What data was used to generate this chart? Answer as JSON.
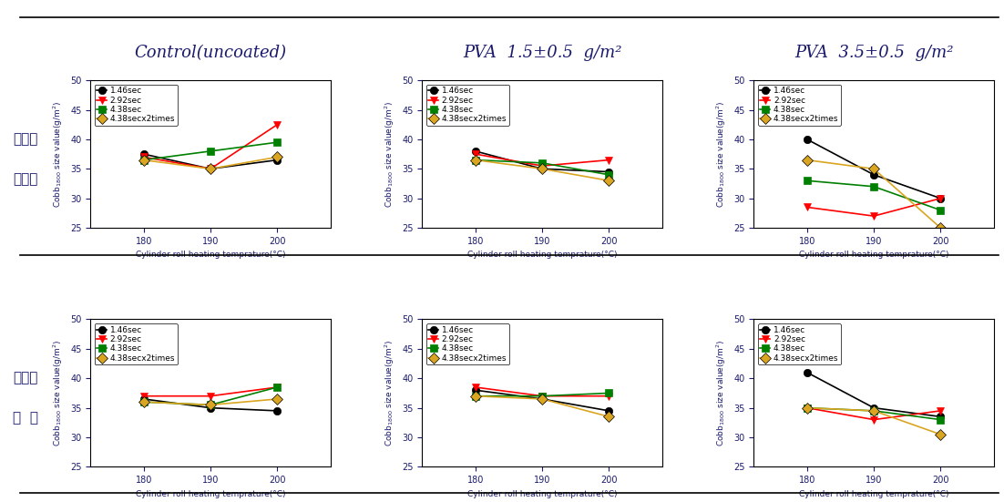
{
  "col_headers": [
    "Control(uncoated)",
    "PVA  1.5±0.5  g/m²",
    "PVA  3.5±0.5  g/m²"
  ],
  "row_headers_top": [
    "캘렌더",
    "미처리"
  ],
  "row_headers_bot": [
    "캘렌더",
    "처  리"
  ],
  "x_values": [
    180,
    190,
    200
  ],
  "xlabel": "Cylinder roll heating temprature(°C)",
  "ylabel": "Cobb$_{1800}$ size value(g/m$^2$)",
  "ylim": [
    25,
    50
  ],
  "yticks": [
    25,
    30,
    35,
    40,
    45,
    50
  ],
  "legend_labels": [
    "1.46sec",
    "2.92sec",
    "4.38sec",
    "4.38secx2times"
  ],
  "series_colors": [
    "black",
    "red",
    "green",
    "goldenrod"
  ],
  "series_markers": [
    "o",
    "v",
    "s",
    "D"
  ],
  "data": {
    "row0_col0": {
      "s1": [
        37.5,
        35.0,
        36.5
      ],
      "s2": [
        37.0,
        35.0,
        42.5
      ],
      "s3": [
        36.5,
        38.0,
        39.5
      ],
      "s4": [
        36.5,
        35.0,
        37.0
      ]
    },
    "row0_col1": {
      "s1": [
        38.0,
        35.0,
        34.5
      ],
      "s2": [
        37.5,
        35.5,
        36.5
      ],
      "s3": [
        36.5,
        36.0,
        34.0
      ],
      "s4": [
        36.5,
        35.0,
        33.0
      ]
    },
    "row0_col2": {
      "s1": [
        40.0,
        34.0,
        30.0
      ],
      "s2": [
        28.5,
        27.0,
        30.0
      ],
      "s3": [
        33.0,
        32.0,
        28.0
      ],
      "s4": [
        36.5,
        35.0,
        25.0
      ]
    },
    "row1_col0": {
      "s1": [
        36.5,
        35.0,
        34.5
      ],
      "s2": [
        37.0,
        37.0,
        38.5
      ],
      "s3": [
        36.0,
        35.5,
        38.5
      ],
      "s4": [
        36.0,
        35.5,
        36.5
      ]
    },
    "row1_col1": {
      "s1": [
        38.0,
        36.5,
        34.5
      ],
      "s2": [
        38.5,
        37.0,
        37.0
      ],
      "s3": [
        37.0,
        37.0,
        37.5
      ],
      "s4": [
        37.0,
        36.5,
        33.5
      ]
    },
    "row1_col2": {
      "s1": [
        41.0,
        35.0,
        33.5
      ],
      "s2": [
        35.0,
        33.0,
        34.5
      ],
      "s3": [
        35.0,
        34.5,
        33.0
      ],
      "s4": [
        35.0,
        34.5,
        30.5
      ]
    }
  },
  "axis_label_fontsize": 6.5,
  "tick_fontsize": 7,
  "legend_fontsize": 6.5,
  "row_label_fontsize": 11,
  "col_header_fontsize": 13,
  "marker_size": 6,
  "linewidth": 1.2,
  "background_color": "#ffffff",
  "header_color": "#1a1a6e",
  "axis_label_color": "#1a1a6e",
  "tick_color": "#1a1a6e",
  "row_label_color": "#1a1a6e"
}
